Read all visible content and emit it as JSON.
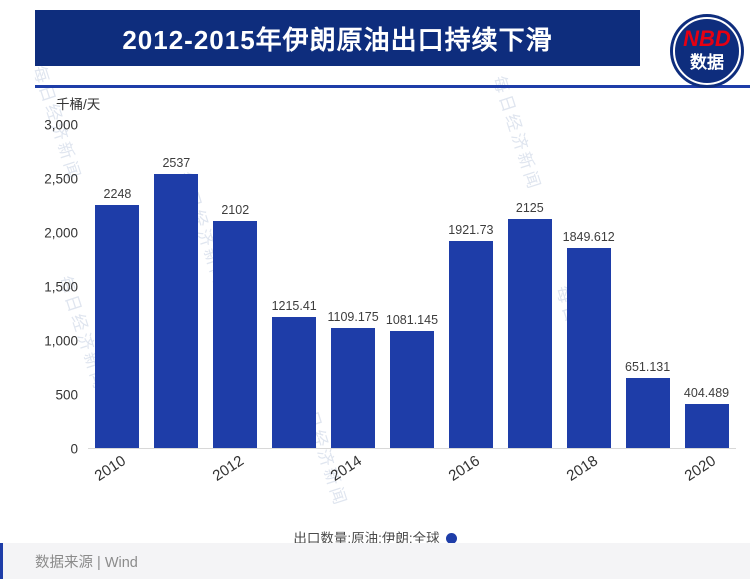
{
  "header": {
    "title": "2012-2015年伊朗原油出口持续下滑"
  },
  "logo": {
    "line1": "NBD",
    "line2": "数据"
  },
  "watermark": {
    "text": "每日经济新闻"
  },
  "chart_data": {
    "type": "bar",
    "title": "2012-2015年伊朗原油出口持续下滑",
    "unit_label": "千桶/天",
    "categories": [
      "2010",
      "2011",
      "2012",
      "2013",
      "2014",
      "2015",
      "2016",
      "2017",
      "2018",
      "2019",
      "2020"
    ],
    "values": [
      2248,
      2537,
      2102,
      1215.41,
      1109.175,
      1081.145,
      1921.73,
      2125,
      1849.612,
      651.131,
      404.489
    ],
    "value_labels": [
      "2248",
      "2537",
      "2102",
      "1215.41",
      "1109.175",
      "1081.145",
      "1921.73",
      "2125",
      "1849.612",
      "651.131",
      "404.489"
    ],
    "x_tick_labels": [
      "2010",
      "2012",
      "2014",
      "2016",
      "2018",
      "2020"
    ],
    "x_ticks_every": 2,
    "y_ticks": [
      "3,000",
      "2,500",
      "2,000",
      "1,500",
      "1,000",
      "500",
      "0"
    ],
    "ylim": [
      0,
      3000
    ],
    "grid": false,
    "bar_color": "#1e3da8",
    "legend": "出口数量:原油:伊朗:全球",
    "legend_position": "bottom"
  },
  "footer": {
    "source": "数据来源 | Wind"
  },
  "colors": {
    "header_bg": "#0e2d7d",
    "accent": "#1e3da8",
    "logo_red": "#e60012"
  }
}
